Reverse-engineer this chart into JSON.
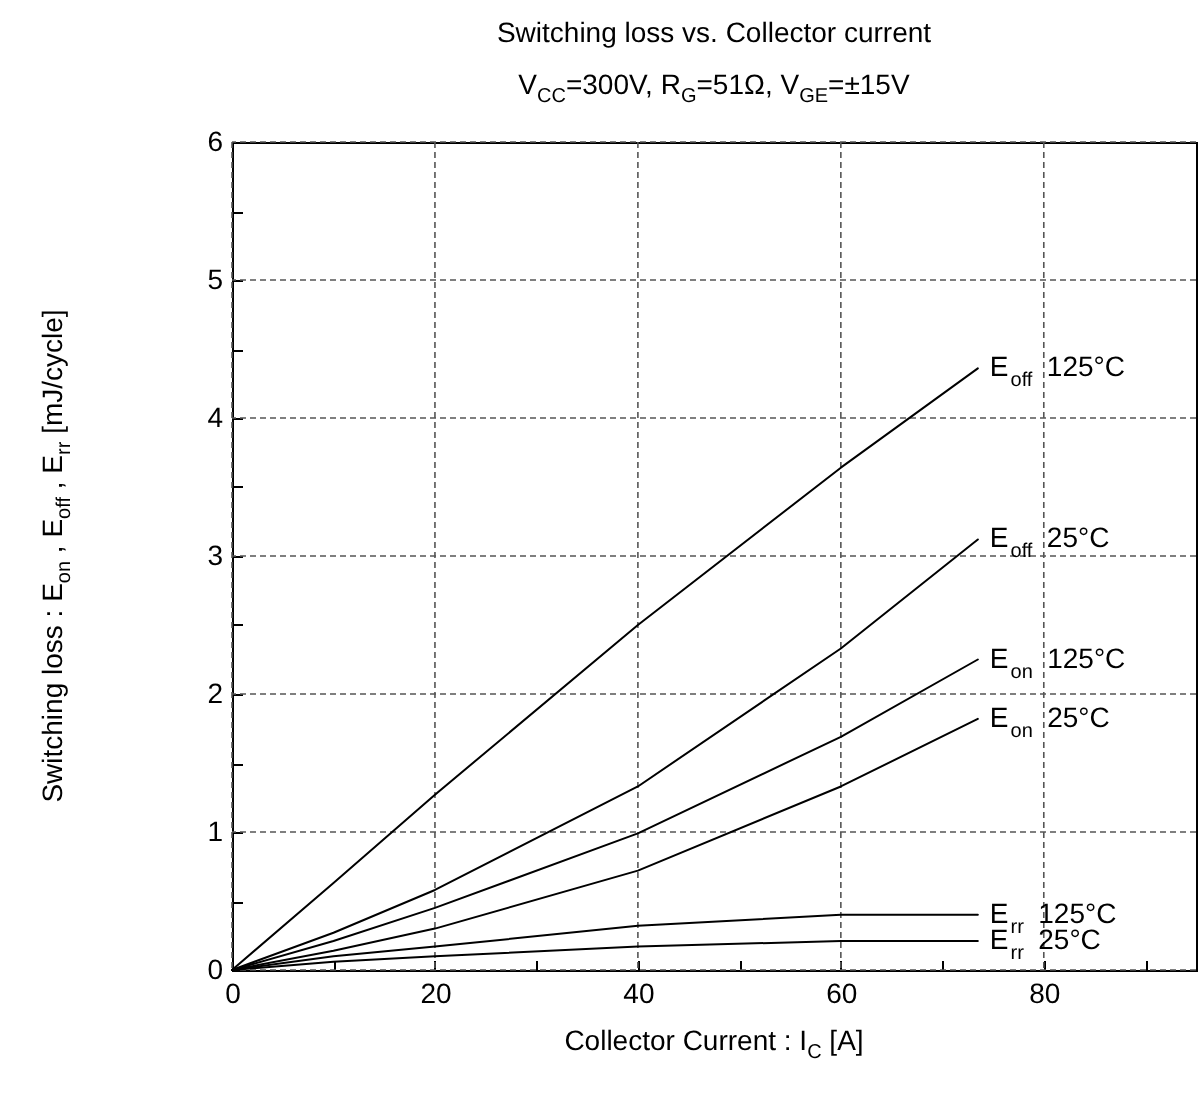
{
  "chart_data": {
    "type": "line",
    "title": "Switching loss vs. Collector current",
    "subtitle": "V$_{CC}$=300V, R$_{G}$=51Ω, V$_{GE}$=±15V",
    "xlabel": "Collector Current : I$_{C}$   [A]",
    "ylabel": "Switching loss : E$_{on}$ , E$_{off}$ , E$_{rr}$ [mJ/cycle]",
    "x": [
      0,
      10,
      20,
      40,
      60,
      73.5
    ],
    "series": [
      {
        "name": "E$_{off}$ 125°C",
        "color": "#000000",
        "values": [
          0,
          0.63,
          1.27,
          2.5,
          3.64,
          4.36
        ]
      },
      {
        "name": "E$_{off}$ 25°C",
        "color": "#000000",
        "values": [
          0,
          0.27,
          0.58,
          1.33,
          2.33,
          3.12
        ]
      },
      {
        "name": "E$_{on}$ 125°C",
        "color": "#000000",
        "values": [
          0,
          0.21,
          0.45,
          0.99,
          1.69,
          2.25
        ]
      },
      {
        "name": "E$_{on}$ 25°C",
        "color": "#000000",
        "values": [
          0,
          0.14,
          0.3,
          0.72,
          1.33,
          1.82
        ]
      },
      {
        "name": "E$_{rr}$ 125°C",
        "color": "#000000",
        "values": [
          0,
          0.1,
          0.17,
          0.32,
          0.4,
          0.4
        ]
      },
      {
        "name": "E$_{rr}$ 25°C",
        "color": "#000000",
        "values": [
          0,
          0.06,
          0.1,
          0.17,
          0.21,
          0.21
        ]
      }
    ],
    "xlim": [
      0,
      95
    ],
    "xticks": [
      0,
      {
        "value": 10,
        "label": null
      },
      20,
      {
        "value": 30,
        "label": null
      },
      40,
      {
        "value": 50,
        "label": null
      },
      60,
      {
        "value": 70,
        "label": null
      },
      80,
      {
        "value": 90,
        "label": null
      }
    ],
    "ylim": [
      0,
      6
    ],
    "yticks": [
      0,
      {
        "value": 0.5,
        "label": null
      },
      1,
      {
        "value": 1.5,
        "label": null
      },
      2,
      {
        "value": 2.5,
        "label": null
      },
      3,
      {
        "value": 3.5,
        "label": null
      },
      4,
      {
        "value": 4.5,
        "label": null
      },
      5,
      {
        "value": 5.5,
        "label": null
      },
      6
    ],
    "grid": true,
    "marker": "none",
    "line_style": "solid"
  }
}
